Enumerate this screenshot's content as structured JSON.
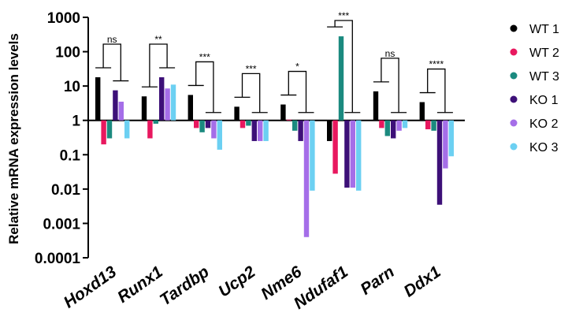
{
  "chart_data": {
    "type": "bar",
    "scale": "log",
    "ylabel": "Relative mRNA expression levels",
    "ylim": [
      0.0001,
      1000
    ],
    "baseline": 1,
    "yticks": [
      "1000",
      "100",
      "10",
      "1",
      "0.1",
      "0.01",
      "0.001",
      "0.0001"
    ],
    "categories": [
      "Hoxd13",
      "Runx1",
      "Tardbp",
      "Ucp2",
      "Nme6",
      "Ndufaf1",
      "Parn",
      "Ddx1"
    ],
    "series": [
      {
        "name": "WT 1",
        "color": "#000000",
        "values": [
          18,
          5,
          5.5,
          2.5,
          2.9,
          0.25,
          7,
          3.4
        ]
      },
      {
        "name": "WT 2",
        "color": "#e8185f",
        "values": [
          0.2,
          0.3,
          0.6,
          0.6,
          1.05,
          0.028,
          0.6,
          0.55
        ]
      },
      {
        "name": "WT 3",
        "color": "#1b8a7f",
        "values": [
          0.3,
          0.8,
          0.45,
          0.7,
          0.5,
          280,
          0.35,
          0.5
        ]
      },
      {
        "name": "KO 1",
        "color": "#3d1078",
        "values": [
          7.5,
          18,
          0.6,
          0.25,
          0.25,
          0.011,
          0.3,
          0.0035
        ]
      },
      {
        "name": "KO 2",
        "color": "#a56ee8",
        "values": [
          3.5,
          8.5,
          0.3,
          0.25,
          0.0004,
          0.011,
          0.5,
          0.04
        ]
      },
      {
        "name": "KO 3",
        "color": "#6cd0f2",
        "values": [
          0.3,
          11,
          0.14,
          0.25,
          0.009,
          0.009,
          0.6,
          0.09
        ]
      }
    ],
    "significance": [
      "ns",
      "**",
      "***",
      "***",
      "*",
      "***",
      "ns",
      "****"
    ],
    "legend_position": "right"
  }
}
